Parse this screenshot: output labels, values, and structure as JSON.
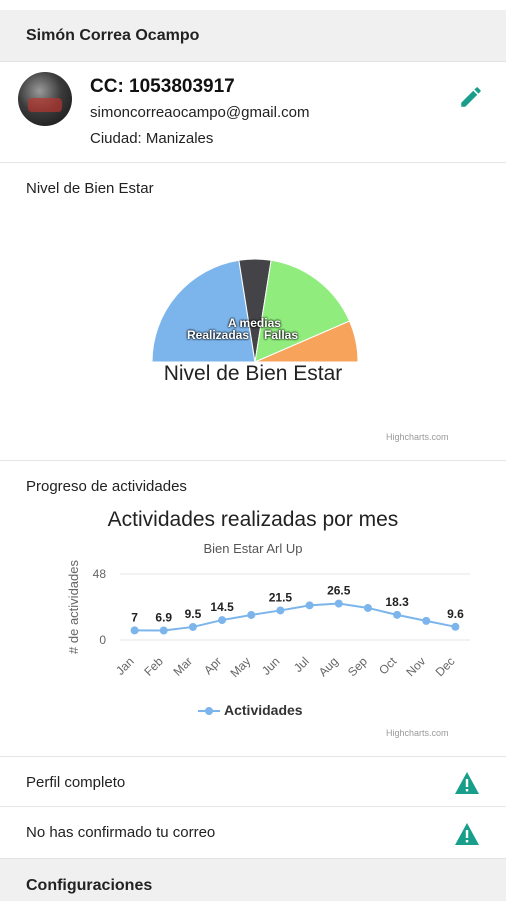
{
  "profile": {
    "name": "Simón Correa Ocampo",
    "cc": "CC: 1053803917",
    "email": "simoncorreaocampo@gmail.com",
    "city": "Ciudad: Manizales",
    "edit_icon": "pencil-icon"
  },
  "wellbeing": {
    "card_title": "Nivel de Bien Estar",
    "chart_title": "Nivel de Bien Estar",
    "credit": "Highcharts.com",
    "labels": [
      "A medias",
      "Realizadas",
      "Fallas"
    ]
  },
  "progress": {
    "card_title": "Progreso de actividades",
    "credit": "Highcharts.com"
  },
  "status": {
    "profile_complete": "Perfil completo",
    "email_unconfirmed": "No has confirmado tu correo",
    "warning_icon": "warning-icon"
  },
  "settings": {
    "title": "Configuraciones"
  },
  "colors": {
    "accent": "#1a9e8c",
    "line": "#7cb5ec"
  },
  "chart_data": [
    {
      "type": "pie",
      "title": "Nivel de Bien Estar",
      "semicircle": true,
      "slices": [
        {
          "name": "",
          "value": 45,
          "color": "#7cb5ec"
        },
        {
          "name": "",
          "value": 10,
          "color": "#434348"
        },
        {
          "name": "",
          "value": 32,
          "color": "#90ed7d"
        },
        {
          "name": "",
          "value": 13,
          "color": "#f7a35c"
        }
      ]
    },
    {
      "type": "line",
      "title": "Actividades realizadas por mes",
      "subtitle": "Bien Estar Arl Up",
      "ylabel": "# de actividades",
      "xlabel": "",
      "ylim": [
        0,
        48
      ],
      "yticks": [
        "0",
        "48"
      ],
      "categories": [
        "Jan",
        "Feb",
        "Mar",
        "Apr",
        "May",
        "Jun",
        "Jul",
        "Aug",
        "Sep",
        "Oct",
        "Nov",
        "Dec"
      ],
      "series": [
        {
          "name": "Actividades",
          "values": [
            7,
            6.9,
            9.5,
            14.5,
            18.2,
            21.5,
            25.2,
            26.5,
            23.3,
            18.3,
            13.9,
            9.6
          ],
          "data_labels": [
            "7",
            "6.9",
            "9.5",
            "14.5",
            "",
            "21.5",
            "",
            "26.5",
            "",
            "18.3",
            "",
            "9.6"
          ]
        }
      ],
      "legend": "bottom-center",
      "grid": true
    }
  ]
}
